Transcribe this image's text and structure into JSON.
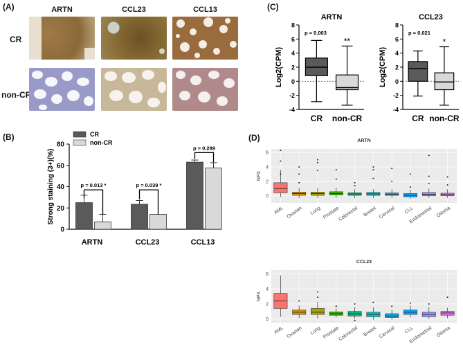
{
  "panels": {
    "a": "(A)",
    "b": "(B)",
    "c": "(C)",
    "d": "(D)"
  },
  "ihc": {
    "columns": [
      "ARTN",
      "CCL23",
      "CCL13"
    ],
    "rows": [
      "CR",
      "non-CR"
    ]
  },
  "colors": {
    "cr_fill": "#5a5a5a",
    "noncr_fill": "#d9d9d9",
    "tissue_brown": "#8a6a3a",
    "tissue_blue": "#9a9ac8"
  },
  "chart_data": [
    {
      "id": "B",
      "type": "bar",
      "categories": [
        "ARTN",
        "CCL23",
        "CCL13"
      ],
      "series": [
        {
          "name": "CR",
          "values": [
            25,
            23.5,
            63
          ],
          "errors": [
            7,
            3.5,
            2
          ]
        },
        {
          "name": "non-CR",
          "values": [
            7,
            14,
            57.5
          ],
          "errors": [
            7,
            0,
            5
          ]
        }
      ],
      "ylabel": "Strong staining (3+)(%)",
      "ylim": [
        0,
        80
      ],
      "yticks": [
        0,
        20,
        40,
        60,
        80
      ],
      "annotations": [
        "p = 0.013 *",
        "p = 0.039 *",
        "p = 0.289"
      ],
      "legend": "top-left"
    },
    {
      "id": "C1",
      "type": "box",
      "title": "ARTN",
      "ylabel": "Log2(CPM)",
      "categories": [
        "CR",
        "non-CR"
      ],
      "ylim": [
        -4,
        8
      ],
      "yticks": [
        -4,
        -2,
        0,
        2,
        4,
        6,
        8
      ],
      "boxes": [
        {
          "min": -2.9,
          "q1": 0.8,
          "median": 2.0,
          "q3": 3.3,
          "max": 5.8
        },
        {
          "min": -3.4,
          "q1": -1.2,
          "median": -0.9,
          "q3": 0.9,
          "max": 5.0
        }
      ],
      "pvalue": "p = 0.003",
      "sig": "**",
      "reference_line": 0
    },
    {
      "id": "C2",
      "type": "box",
      "title": "CCL23",
      "ylabel": "Log2(CPM)",
      "categories": [
        "CR",
        "non-CR"
      ],
      "ylim": [
        -4,
        8
      ],
      "yticks": [
        -4,
        -2,
        0,
        2,
        4,
        6,
        8
      ],
      "boxes": [
        {
          "min": -2.1,
          "q1": 0.0,
          "median": 1.8,
          "q3": 2.8,
          "max": 4.3
        },
        {
          "min": -3.4,
          "q1": -1.2,
          "median": -0.1,
          "q3": 1.2,
          "max": 4.9
        }
      ],
      "pvalue": "p = 0.021",
      "sig": "*",
      "reference_line": 0
    },
    {
      "id": "D1",
      "type": "box",
      "title": "ARTN",
      "ylabel": "NPX",
      "categories": [
        "AML",
        "Ovarian",
        "Lung",
        "Prostate",
        "Colorectal",
        "Breast",
        "Cervical",
        "CLL",
        "Endometrial",
        "Glioma"
      ],
      "ylim": [
        -1,
        6.5
      ],
      "yticks": [
        0,
        2,
        4,
        6
      ],
      "colors": [
        "#f8766d",
        "#d89000",
        "#a3a500",
        "#39b600",
        "#00bf7d",
        "#00bfc4",
        "#00b0f6",
        "#00a5ff",
        "#9590ff",
        "#e76bf3"
      ],
      "boxes": [
        {
          "min": -0.2,
          "q1": 0.4,
          "median": 1.0,
          "q3": 1.8,
          "max": 3.6
        },
        {
          "min": -0.3,
          "q1": 0.05,
          "median": 0.3,
          "q3": 0.5,
          "max": 1.1
        },
        {
          "min": -0.3,
          "q1": 0.05,
          "median": 0.3,
          "q3": 0.5,
          "max": 1.1
        },
        {
          "min": -0.3,
          "q1": 0.1,
          "median": 0.3,
          "q3": 0.55,
          "max": 1.1
        },
        {
          "min": -0.3,
          "q1": 0.05,
          "median": 0.25,
          "q3": 0.4,
          "max": 0.9
        },
        {
          "min": -0.3,
          "q1": 0.05,
          "median": 0.25,
          "q3": 0.45,
          "max": 0.9
        },
        {
          "min": -0.3,
          "q1": 0.05,
          "median": 0.2,
          "q3": 0.4,
          "max": 0.9
        },
        {
          "min": -0.4,
          "q1": -0.15,
          "median": 0.05,
          "q3": 0.3,
          "max": 0.8
        },
        {
          "min": -0.3,
          "q1": 0.0,
          "median": 0.2,
          "q3": 0.45,
          "max": 1.0
        },
        {
          "min": -0.3,
          "q1": 0.0,
          "median": 0.15,
          "q3": 0.35,
          "max": 0.9
        }
      ],
      "outliers": [
        [
          6.3,
          4.8,
          3.0
        ],
        [
          4.0,
          3.0,
          1.8
        ],
        [
          5.0,
          4.6,
          3.5
        ],
        [
          3.6,
          2.3
        ],
        [
          1.8,
          1.4
        ],
        [
          4.0,
          3.6,
          2.4
        ],
        [
          3.8,
          2.0
        ],
        [
          3.0,
          1.2
        ],
        [
          5.6,
          2.7,
          1.7
        ],
        [
          2.6,
          1.5
        ]
      ]
    },
    {
      "id": "D2",
      "type": "box",
      "title": "CCL23",
      "ylabel": "NPX",
      "categories": [
        "AML",
        "Ovarian",
        "Lung",
        "Prostate",
        "Colorectal",
        "Breast",
        "Cervical",
        "CLL",
        "Endometrial",
        "Glioma"
      ],
      "ylim": [
        -0.5,
        6.5
      ],
      "yticks": [
        0,
        2,
        4,
        6
      ],
      "colors": [
        "#f8766d",
        "#d89000",
        "#a3a500",
        "#39b600",
        "#00bf7d",
        "#00bfc4",
        "#00b0f6",
        "#00a5ff",
        "#9590ff",
        "#e76bf3"
      ],
      "boxes": [
        {
          "min": 0.3,
          "q1": 1.4,
          "median": 2.4,
          "q3": 3.4,
          "max": 5.8
        },
        {
          "min": 0.1,
          "q1": 0.6,
          "median": 0.9,
          "q3": 1.2,
          "max": 1.8
        },
        {
          "min": 0.0,
          "q1": 0.6,
          "median": 0.9,
          "q3": 1.4,
          "max": 2.3
        },
        {
          "min": 0.2,
          "q1": 0.5,
          "median": 0.7,
          "q3": 0.95,
          "max": 1.4
        },
        {
          "min": 0.0,
          "q1": 0.4,
          "median": 0.7,
          "q3": 1.0,
          "max": 1.6
        },
        {
          "min": -0.1,
          "q1": 0.3,
          "median": 0.6,
          "q3": 0.9,
          "max": 1.6
        },
        {
          "min": -0.1,
          "q1": 0.2,
          "median": 0.4,
          "q3": 0.7,
          "max": 1.2
        },
        {
          "min": 0.2,
          "q1": 0.6,
          "median": 0.9,
          "q3": 1.2,
          "max": 1.8
        },
        {
          "min": 0.0,
          "q1": 0.3,
          "median": 0.6,
          "q3": 0.9,
          "max": 1.6
        },
        {
          "min": 0.1,
          "q1": 0.5,
          "median": 0.8,
          "q3": 1.0,
          "max": 1.5
        }
      ],
      "outliers": [
        [],
        [
          2.4
        ],
        [
          3.6,
          2.9
        ],
        [
          1.7
        ],
        [
          2.0,
          -0.2
        ],
        [
          2.2
        ],
        [
          1.7
        ],
        [
          2.1
        ],
        [
          2.0
        ],
        [
          2.9
        ]
      ]
    }
  ]
}
